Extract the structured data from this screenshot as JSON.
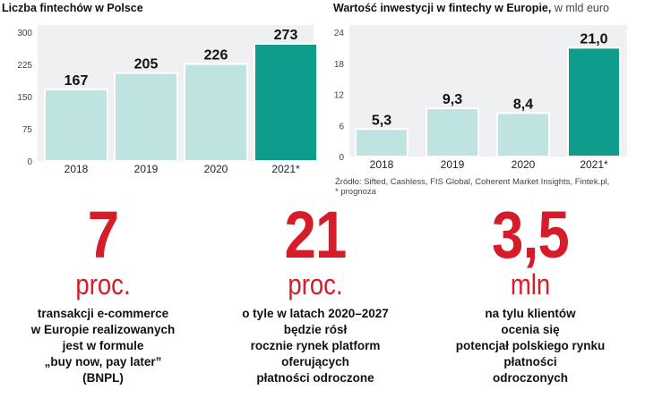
{
  "chart_data": [
    {
      "type": "bar",
      "title": "Liczba fintechów w Polsce",
      "categories": [
        "2018",
        "2019",
        "2020",
        "2021*"
      ],
      "values": [
        167,
        205,
        226,
        273
      ],
      "value_labels": [
        "167",
        "205",
        "226",
        "273"
      ],
      "yticks": [
        "300",
        "225",
        "150",
        "75",
        "0"
      ],
      "ylim": [
        0,
        300
      ],
      "highlight_index": 3,
      "colors": {
        "bar": "#bfe3e1",
        "highlight": "#0e9c8c"
      }
    },
    {
      "type": "bar",
      "title": "Wartość inwestycji w fintechy w Europie,",
      "subtitle": "w mld euro",
      "categories": [
        "2018",
        "2019",
        "2020",
        "2021*"
      ],
      "values": [
        5.3,
        9.3,
        8.4,
        21.0
      ],
      "value_labels": [
        "5,3",
        "9,3",
        "8,4",
        "21,0"
      ],
      "yticks": [
        "24",
        "18",
        "12",
        "6",
        "0"
      ],
      "ylim": [
        0,
        24
      ],
      "highlight_index": 3,
      "colors": {
        "bar": "#bfe3e1",
        "highlight": "#0e9c8c"
      }
    }
  ],
  "source": {
    "line1": "Źródło: Sifted, Cashless, FIS Global, Coherent Market Insights, Fintek.pl,",
    "line2": "* prognoza"
  },
  "stats": [
    {
      "number": "7",
      "unit": "proc.",
      "lines": [
        "transakcji e-commerce",
        "w Europie realizowanych",
        "jest w formule",
        "„buy now, pay later”",
        "(BNPL)"
      ]
    },
    {
      "number": "21",
      "unit": "proc.",
      "lines": [
        "o tyle w latach 2020–2027",
        "będzie rósł",
        "rocznie rynek platform",
        "oferujących",
        "płatności odroczone"
      ]
    },
    {
      "number": "3,5",
      "unit": "mln",
      "lines": [
        "na tylu klientów",
        "ocenia się",
        "potencjał polskiego rynku",
        "płatności",
        "odroczonych"
      ]
    }
  ],
  "colors": {
    "accent": "#d51c28",
    "panel_bg": "#eef0f2"
  }
}
